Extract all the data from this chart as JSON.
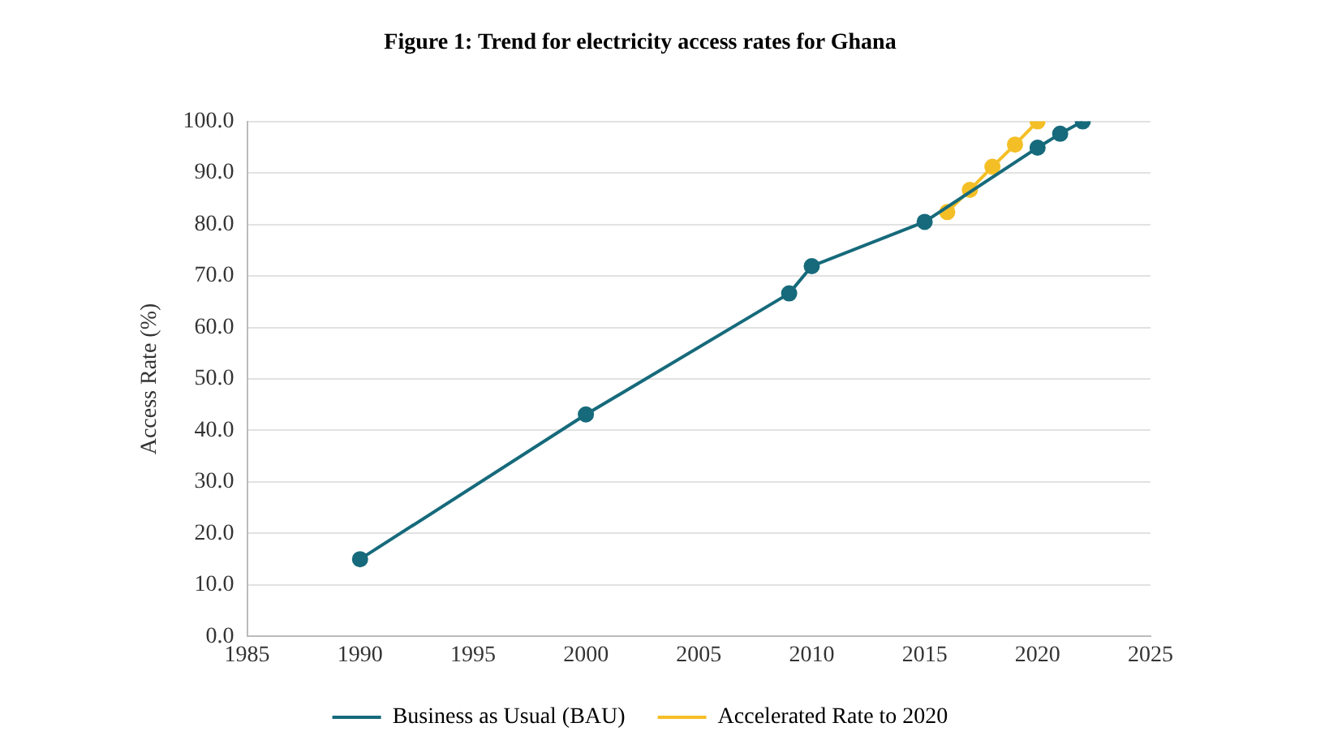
{
  "chart_data": {
    "type": "line",
    "title": "Figure 1: Trend for electricity access rates for Ghana",
    "ylabel": "Access Rate (%)",
    "series": [
      {
        "name": "Business as Usual (BAU)",
        "color": "#166a7b",
        "x": [
          1990,
          2000,
          2009,
          2010,
          2015,
          2020,
          2021,
          2022
        ],
        "values": [
          15,
          43.1,
          66.6,
          71.9,
          80.5,
          94.9,
          97.6,
          100
        ]
      },
      {
        "name": "Accelerated Rate to 2020",
        "color": "#f4bf26",
        "x": [
          2016,
          2017,
          2018,
          2019,
          2020
        ],
        "values": [
          82.4,
          86.7,
          91.2,
          95.5,
          100
        ]
      }
    ],
    "xlim": [
      1985,
      2025
    ],
    "xticks": [
      1985,
      1990,
      1995,
      2000,
      2005,
      2010,
      2015,
      2020,
      2025
    ],
    "ylim": [
      0,
      100
    ],
    "yticks": [
      {
        "value": 0,
        "label": "0.0"
      },
      {
        "value": 10,
        "label": "10.0"
      },
      {
        "value": 20,
        "label": "20.0"
      },
      {
        "value": 30,
        "label": "30.0"
      },
      {
        "value": 40,
        "label": "40.0"
      },
      {
        "value": 50,
        "label": "50.0"
      },
      {
        "value": 60,
        "label": "60.0"
      },
      {
        "value": 70,
        "label": "70.0"
      },
      {
        "value": 80,
        "label": "80.0"
      },
      {
        "value": 90,
        "label": "90.0"
      },
      {
        "value": 100,
        "label": "100.0"
      }
    ],
    "grid": "y",
    "legend": "bottom",
    "marker": "circle",
    "line_style": "solid"
  }
}
